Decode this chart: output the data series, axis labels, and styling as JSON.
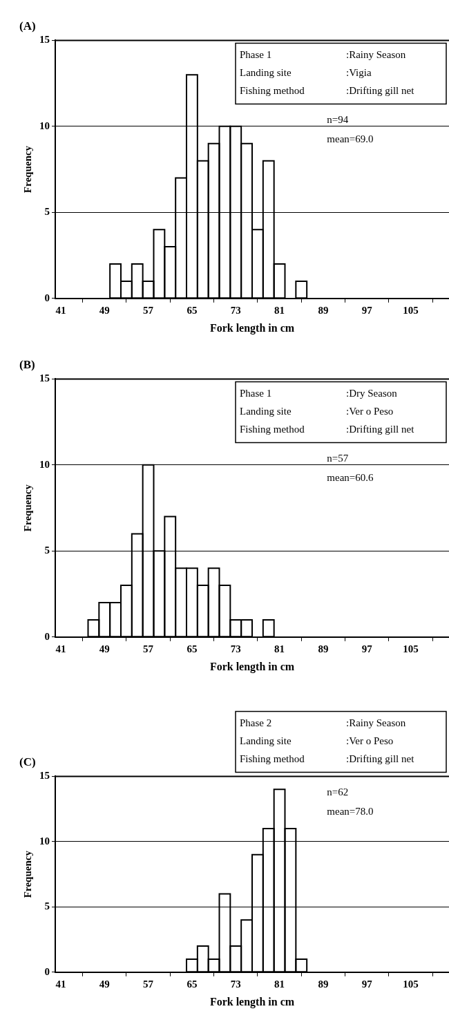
{
  "chart_data": [
    {
      "type": "histogram",
      "title": "(A)",
      "xlabel": "Fork length in cm",
      "ylabel": "Frequency",
      "bins": [
        40,
        42,
        44,
        46,
        48,
        50,
        52,
        54,
        56,
        58,
        60,
        62,
        64,
        66,
        68,
        70,
        72,
        74,
        76,
        78,
        80,
        82,
        84,
        86,
        88,
        90,
        92,
        94,
        96,
        98,
        100,
        102,
        104,
        106,
        108,
        110,
        112
      ],
      "values": [
        0,
        0,
        0,
        0,
        0,
        2,
        1,
        2,
        1,
        4,
        3,
        7,
        13,
        8,
        9,
        10,
        10,
        9,
        4,
        8,
        2,
        0,
        1,
        0,
        0,
        0,
        0,
        0,
        0,
        0,
        0,
        0,
        0,
        0,
        0,
        0
      ],
      "color": "#000000",
      "xlim": [
        40,
        112
      ],
      "xticks": [
        41,
        49,
        57,
        65,
        73,
        81,
        89,
        97,
        105
      ],
      "ylim": [
        0,
        15
      ],
      "yticks": [
        0,
        5,
        10,
        15
      ],
      "grid": "y",
      "annotations": [
        "Phase 1",
        ":Rainy Season",
        "Landing site",
        ":Vigia",
        "Fishing method",
        ":Drifting gill net",
        "n=94",
        "mean=69.0"
      ]
    },
    {
      "type": "histogram",
      "title": "(B)",
      "xlabel": "Fork length in cm",
      "ylabel": "Frequency",
      "bins": [
        40,
        42,
        44,
        46,
        48,
        50,
        52,
        54,
        56,
        58,
        60,
        62,
        64,
        66,
        68,
        70,
        72,
        74,
        76,
        78,
        80,
        82,
        84,
        86,
        88,
        90,
        92,
        94,
        96,
        98,
        100,
        102,
        104,
        106,
        108,
        110,
        112
      ],
      "values": [
        0,
        0,
        0,
        1,
        2,
        2,
        3,
        6,
        10,
        5,
        7,
        4,
        4,
        3,
        4,
        3,
        1,
        1,
        0,
        1,
        0,
        0,
        0,
        0,
        0,
        0,
        0,
        0,
        0,
        0,
        0,
        0,
        0,
        0,
        0,
        0
      ],
      "color": "#000000",
      "xlim": [
        40,
        112
      ],
      "xticks": [
        41,
        49,
        57,
        65,
        73,
        81,
        89,
        97,
        105
      ],
      "ylim": [
        0,
        15
      ],
      "yticks": [
        0,
        5,
        10,
        15
      ],
      "grid": "y",
      "annotations": [
        "Phase 1",
        ":Dry Season",
        "Landing site",
        ":Ver o Peso",
        "Fishing method",
        ":Drifting gill net",
        "n=57",
        "mean=60.6"
      ]
    },
    {
      "type": "histogram",
      "title": "(C)",
      "xlabel": "Fork length in cm",
      "ylabel": "Frequency",
      "bins": [
        40,
        42,
        44,
        46,
        48,
        50,
        52,
        54,
        56,
        58,
        60,
        62,
        64,
        66,
        68,
        70,
        72,
        74,
        76,
        78,
        80,
        82,
        84,
        86,
        88,
        90,
        92,
        94,
        96,
        98,
        100,
        102,
        104,
        106,
        108,
        110,
        112
      ],
      "values": [
        0,
        0,
        0,
        0,
        0,
        0,
        0,
        0,
        0,
        0,
        0,
        0,
        1,
        2,
        1,
        6,
        2,
        4,
        9,
        11,
        14,
        11,
        1,
        0,
        0,
        0,
        0,
        0,
        0,
        0,
        0,
        0,
        0,
        0,
        0,
        0
      ],
      "color": "#000000",
      "xlim": [
        40,
        112
      ],
      "xticks": [
        41,
        49,
        57,
        65,
        73,
        81,
        89,
        97,
        105
      ],
      "ylim": [
        0,
        15
      ],
      "yticks": [
        0,
        5,
        10,
        15
      ],
      "grid": "y",
      "annotations": [
        "Phase 2",
        ":Rainy Season",
        "Landing site",
        ":Ver o Peso",
        "Fishing method",
        ":Drifting gill net",
        "n=62",
        "mean=78.0"
      ]
    }
  ]
}
